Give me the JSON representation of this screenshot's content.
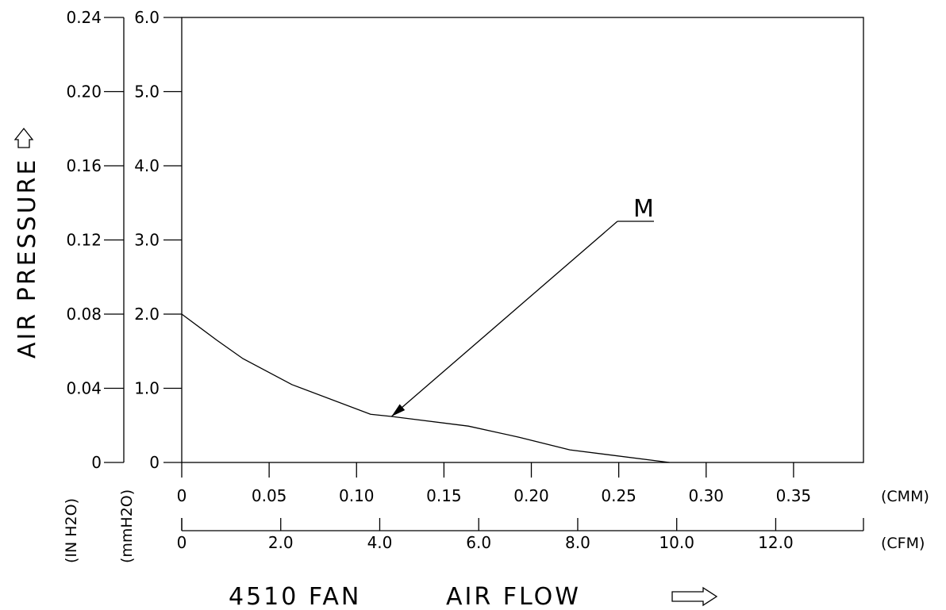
{
  "chart_data": {
    "type": "line",
    "title": "4510 FAN",
    "xlabel": "AIR FLOW",
    "ylabel": "AIR PRESSURE",
    "x_cmm": [
      0,
      0.02,
      0.035,
      0.063,
      0.108,
      0.12,
      0.164,
      0.193,
      0.222,
      0.279
    ],
    "y_mmh2o": [
      2.0,
      1.65,
      1.4,
      1.05,
      0.65,
      0.62,
      0.49,
      0.34,
      0.17,
      0.0
    ],
    "xlim_cmm": [
      0,
      0.39
    ],
    "ylim_mmh2o": [
      0,
      6.0
    ],
    "x_ticks_cmm": [
      "0",
      "0.05",
      "0.10",
      "0.15",
      "0.20",
      "0.25",
      "0.30",
      "0.35"
    ],
    "x_ticks_cfm": [
      "0",
      "2.0",
      "4.0",
      "6.0",
      "8.0",
      "10.0",
      "12.0"
    ],
    "y_ticks_mmh2o": [
      "0",
      "1.0",
      "2.0",
      "3.0",
      "4.0",
      "5.0",
      "6.0"
    ],
    "y_ticks_inh2o": [
      "0",
      "0.04",
      "0.08",
      "0.12",
      "0.16",
      "0.20",
      "0.24"
    ],
    "unit_cmm": "(CMM)",
    "unit_cfm": "(CFM)",
    "unit_inh2o": "(IN H2O)",
    "unit_mmh2o": "(mmH2O)",
    "annotation": {
      "label": "M",
      "point_cmm": 0.12,
      "point_mmh2o": 0.62
    }
  }
}
